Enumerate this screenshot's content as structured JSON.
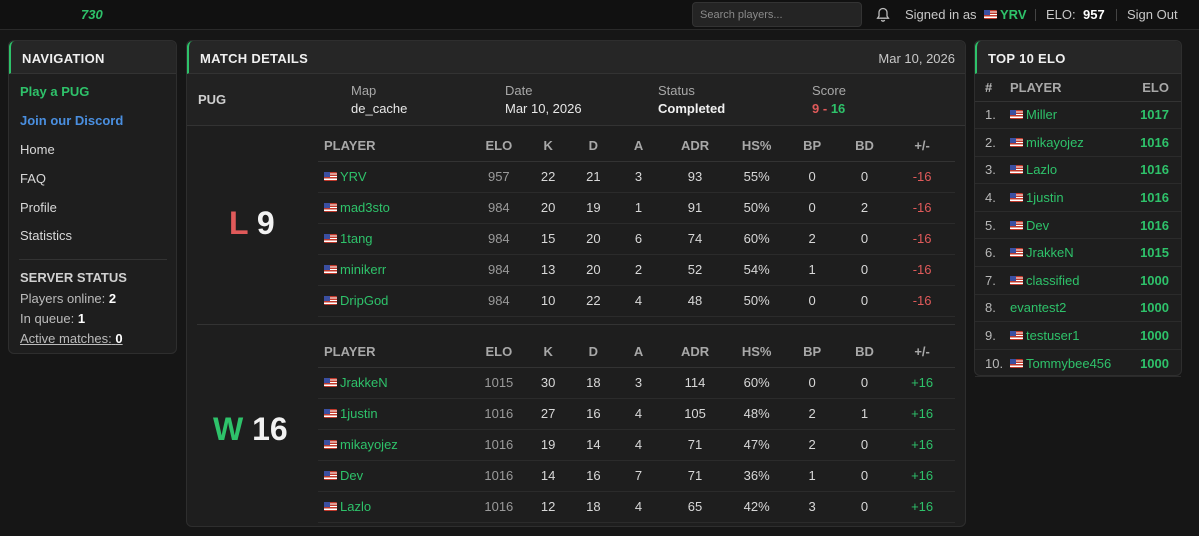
{
  "topbar": {
    "logo": "730",
    "search_placeholder": "Search players...",
    "signed_in_label": "Signed in as",
    "username": "YRV",
    "elo_label": "ELO:",
    "elo_value": "957",
    "sign_out": "Sign Out"
  },
  "nav": {
    "title": "NAVIGATION",
    "items": [
      {
        "label": "Play a PUG"
      },
      {
        "label": "Join our Discord"
      },
      {
        "label": "Home"
      },
      {
        "label": "FAQ"
      },
      {
        "label": "Profile"
      },
      {
        "label": "Statistics"
      }
    ],
    "server_status": {
      "title": "SERVER STATUS",
      "players_online_label": "Players online:",
      "players_online": "2",
      "in_queue_label": "In queue:",
      "in_queue": "1",
      "active_matches_label": "Active matches:",
      "active_matches": "0"
    }
  },
  "match": {
    "title": "MATCH DETAILS",
    "date_header": "Mar 10, 2026",
    "type": "PUG",
    "map_label": "Map",
    "map": "de_cache",
    "date_label": "Date",
    "date": "Mar 10, 2026",
    "status_label": "Status",
    "status": "Completed",
    "score_label": "Score",
    "score_left": "9",
    "score_dash": "-",
    "score_right": "16",
    "columns": [
      "PLAYER",
      "ELO",
      "K",
      "D",
      "A",
      "ADR",
      "HS%",
      "BP",
      "BD",
      "+/-"
    ],
    "team1": {
      "result": "L",
      "score": "9",
      "players": [
        {
          "name": "YRV",
          "elo": "957",
          "k": "22",
          "d": "21",
          "a": "3",
          "adr": "93",
          "hs": "55%",
          "bp": "0",
          "bd": "0",
          "pm": "-16"
        },
        {
          "name": "mad3sto",
          "elo": "984",
          "k": "20",
          "d": "19",
          "a": "1",
          "adr": "91",
          "hs": "50%",
          "bp": "0",
          "bd": "2",
          "pm": "-16"
        },
        {
          "name": "1tang",
          "elo": "984",
          "k": "15",
          "d": "20",
          "a": "6",
          "adr": "74",
          "hs": "60%",
          "bp": "2",
          "bd": "0",
          "pm": "-16"
        },
        {
          "name": "minikerr",
          "elo": "984",
          "k": "13",
          "d": "20",
          "a": "2",
          "adr": "52",
          "hs": "54%",
          "bp": "1",
          "bd": "0",
          "pm": "-16"
        },
        {
          "name": "DripGod",
          "elo": "984",
          "k": "10",
          "d": "22",
          "a": "4",
          "adr": "48",
          "hs": "50%",
          "bp": "0",
          "bd": "0",
          "pm": "-16"
        }
      ]
    },
    "team2": {
      "result": "W",
      "score": "16",
      "players": [
        {
          "name": "JrakkeN",
          "elo": "1015",
          "k": "30",
          "d": "18",
          "a": "3",
          "adr": "114",
          "hs": "60%",
          "bp": "0",
          "bd": "0",
          "pm": "+16"
        },
        {
          "name": "1justin",
          "elo": "1016",
          "k": "27",
          "d": "16",
          "a": "4",
          "adr": "105",
          "hs": "48%",
          "bp": "2",
          "bd": "1",
          "pm": "+16"
        },
        {
          "name": "mikayojez",
          "elo": "1016",
          "k": "19",
          "d": "14",
          "a": "4",
          "adr": "71",
          "hs": "47%",
          "bp": "2",
          "bd": "0",
          "pm": "+16"
        },
        {
          "name": "Dev",
          "elo": "1016",
          "k": "14",
          "d": "16",
          "a": "7",
          "adr": "71",
          "hs": "36%",
          "bp": "1",
          "bd": "0",
          "pm": "+16"
        },
        {
          "name": "Lazlo",
          "elo": "1016",
          "k": "12",
          "d": "18",
          "a": "4",
          "adr": "65",
          "hs": "42%",
          "bp": "3",
          "bd": "0",
          "pm": "+16"
        }
      ]
    }
  },
  "top10": {
    "title": "TOP 10 ELO",
    "columns": [
      "#",
      "PLAYER",
      "ELO"
    ],
    "rows": [
      {
        "rank": "1.",
        "name": "Miller",
        "flag": true,
        "elo": "1017"
      },
      {
        "rank": "2.",
        "name": "mikayojez",
        "flag": true,
        "elo": "1016"
      },
      {
        "rank": "3.",
        "name": "Lazlo",
        "flag": true,
        "elo": "1016"
      },
      {
        "rank": "4.",
        "name": "1justin",
        "flag": true,
        "elo": "1016"
      },
      {
        "rank": "5.",
        "name": "Dev",
        "flag": true,
        "elo": "1016"
      },
      {
        "rank": "6.",
        "name": "JrakkeN",
        "flag": true,
        "elo": "1015"
      },
      {
        "rank": "7.",
        "name": "classified",
        "flag": true,
        "elo": "1000"
      },
      {
        "rank": "8.",
        "name": "evantest2",
        "flag": false,
        "elo": "1000"
      },
      {
        "rank": "9.",
        "name": "testuser1",
        "flag": true,
        "elo": "1000"
      },
      {
        "rank": "10.",
        "name": "Tommybee456",
        "flag": true,
        "elo": "1000"
      }
    ]
  }
}
